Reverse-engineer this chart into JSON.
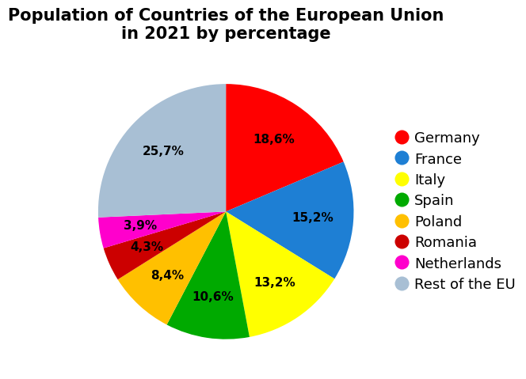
{
  "title": "Population of Countries of the European Union\nin 2021 by percentage",
  "labels": [
    "Germany",
    "France",
    "Italy",
    "Spain",
    "Poland",
    "Romania",
    "Netherlands",
    "Rest of the EU"
  ],
  "values": [
    18.6,
    15.2,
    13.2,
    10.6,
    8.4,
    4.3,
    3.9,
    25.7
  ],
  "colors": [
    "#ff0000",
    "#1e7fd4",
    "#ffff00",
    "#00aa00",
    "#ffc000",
    "#cc0000",
    "#ff00cc",
    "#a8bfd4"
  ],
  "autopct_labels": [
    "18,6%",
    "15,2%",
    "13,2%",
    "10,6%",
    "8,4%",
    "4,3%",
    "3,9%",
    "25,7%"
  ],
  "title_fontsize": 15,
  "autopct_fontsize": 11,
  "legend_fontsize": 13,
  "startangle": 90,
  "background_color": "#ffffff"
}
